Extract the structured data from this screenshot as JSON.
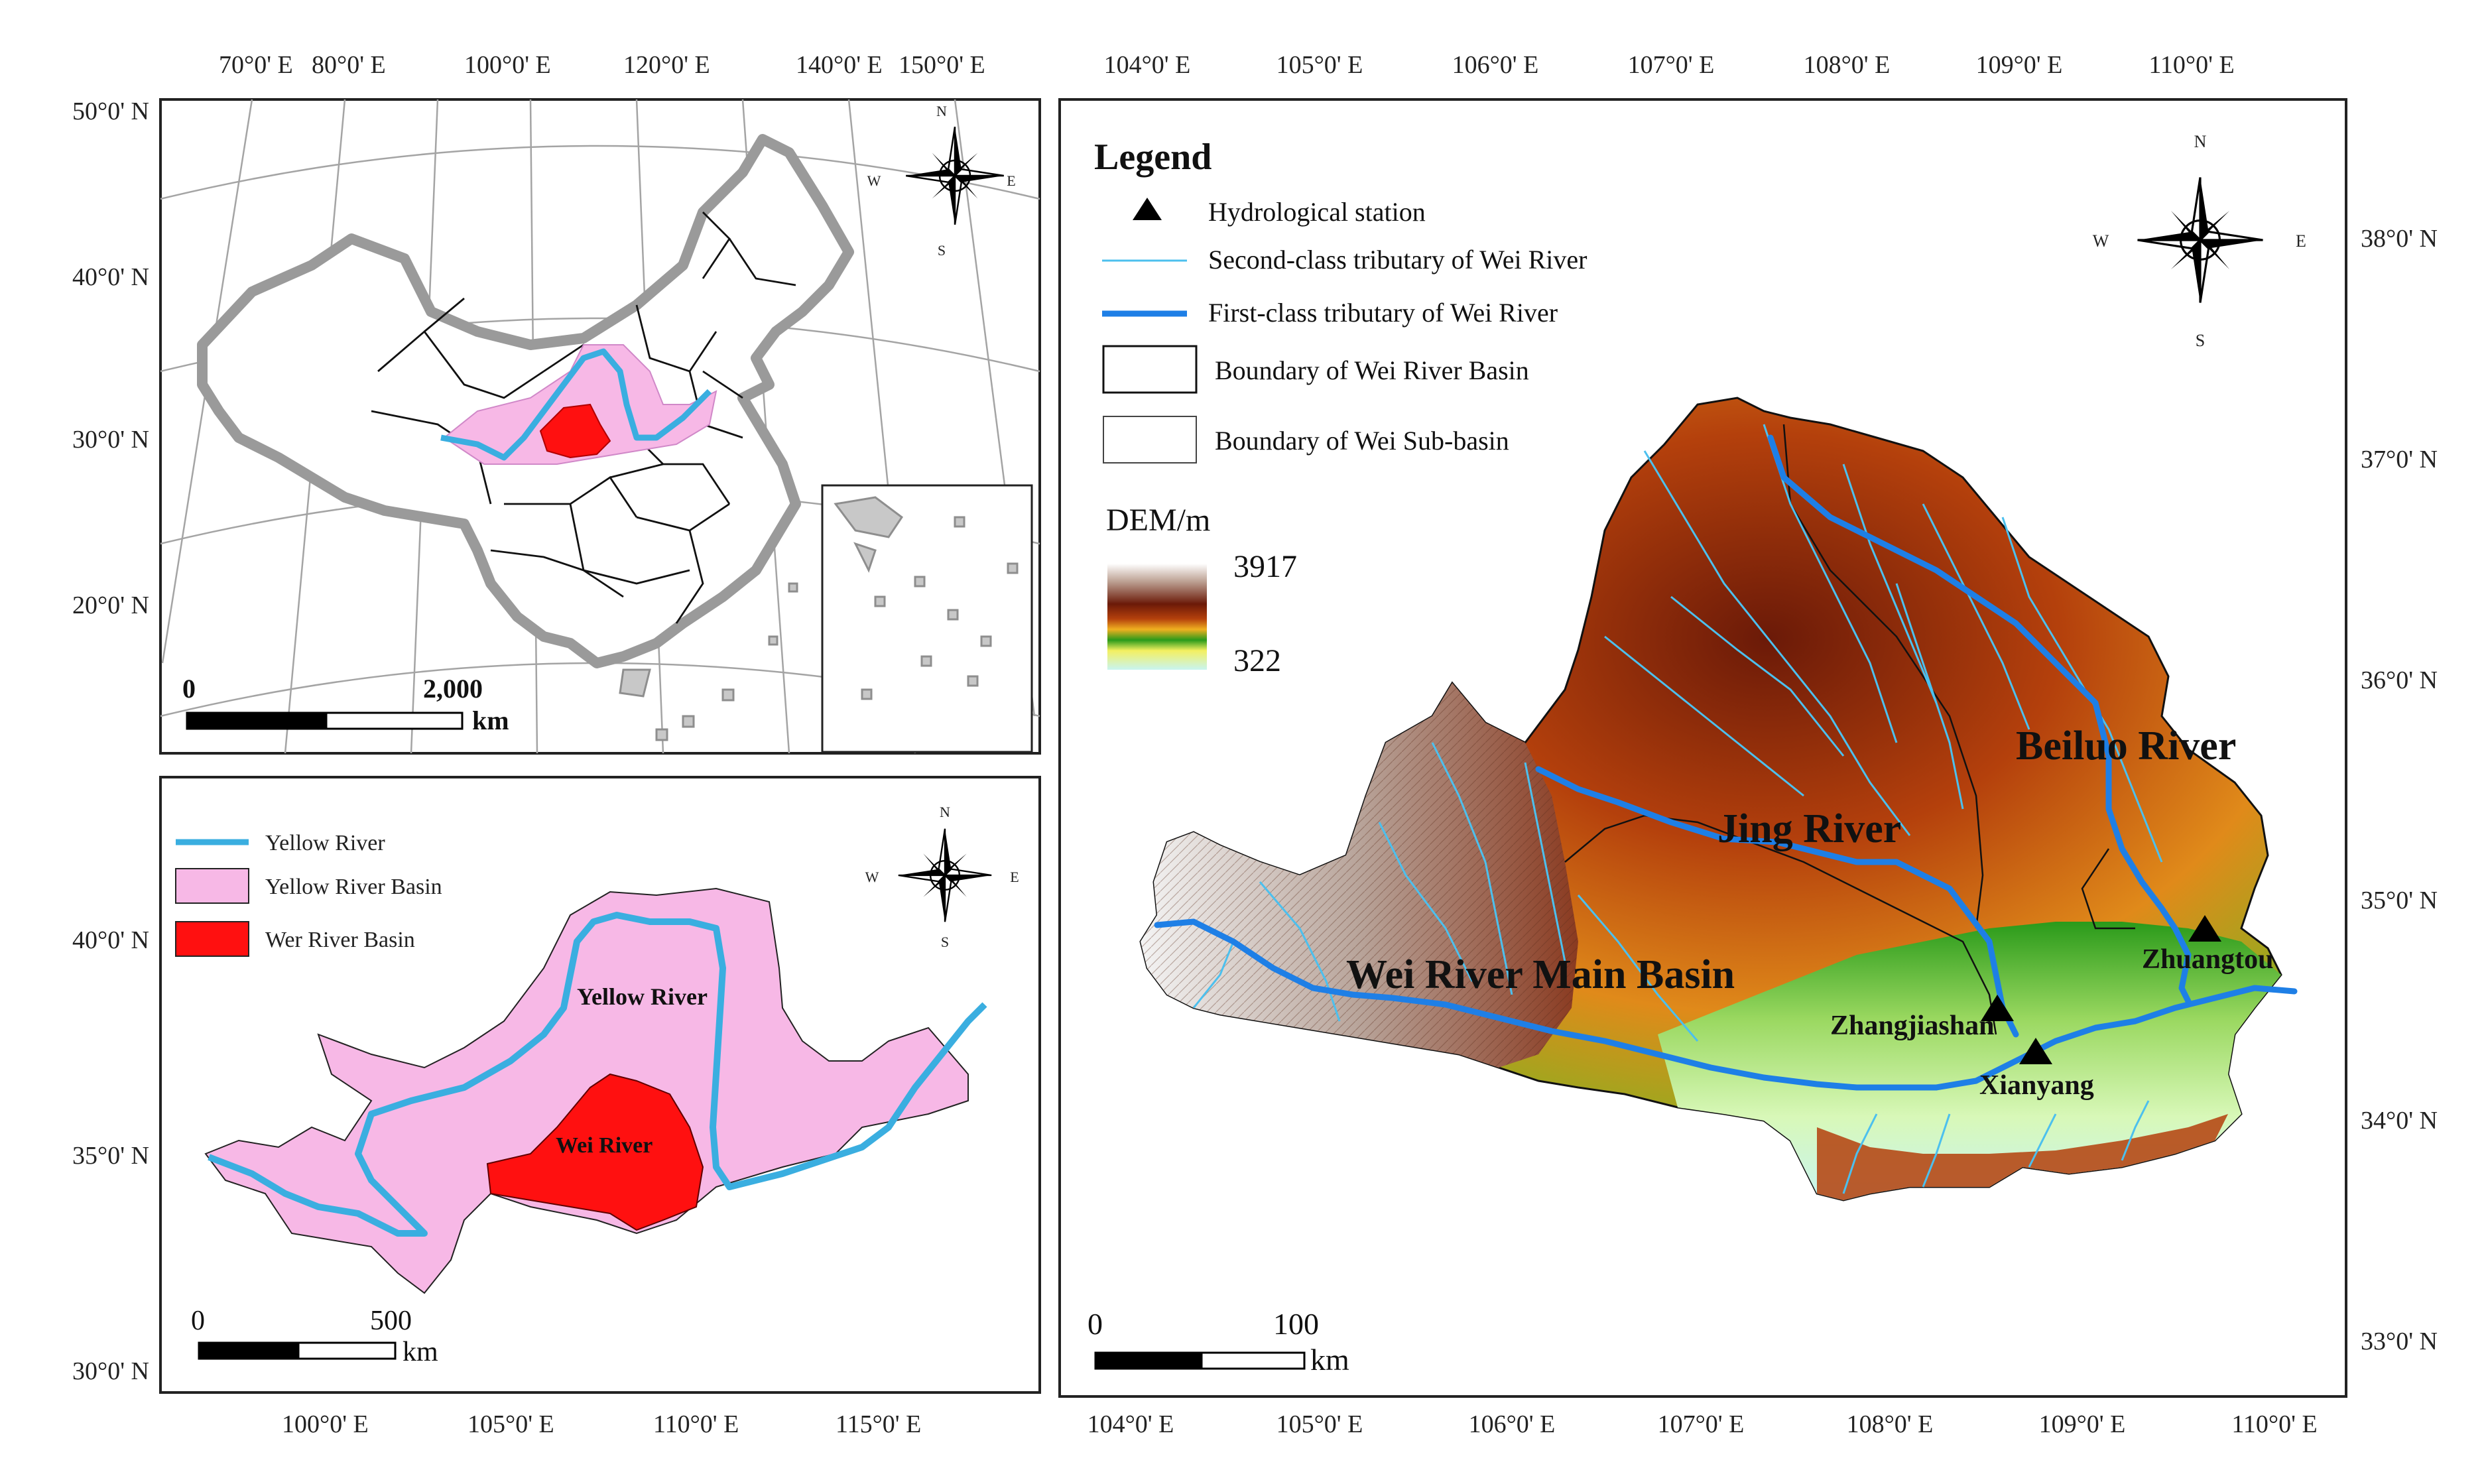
{
  "colors": {
    "frame": "#222222",
    "graticule": "#9a9a9a",
    "china_outline": "#8e8e8e",
    "province": "#111111",
    "yellow_river_basin": "#f7b8e6",
    "wei_river_basin": "#ff1010",
    "yellow_river": "#3aaee0",
    "first_class_tributary": "#1e7fe6",
    "second_class_tributary": "#4cc0ee",
    "dem_high": "#ffffff",
    "dem_brown": "#6b1a08",
    "dem_orange": "#e08a1a",
    "dem_green": "#2a9a1a",
    "dem_low": "#c8f4f0"
  },
  "panel_china": {
    "top_lon_labels": [
      "70°0' E",
      "80°0' E",
      "100°0' E",
      "120°0' E",
      "140°0' E",
      "150°0' E"
    ],
    "left_lat_labels": [
      "50°0' N",
      "40°0' N",
      "30°0' N",
      "20°0' N"
    ],
    "scale_min": "0",
    "scale_max": "2,000",
    "scale_unit": "km",
    "north_arrow": {
      "n": "N",
      "s": "S",
      "e": "E",
      "w": "W"
    }
  },
  "panel_yellow": {
    "bottom_lon_labels": [
      "100°0' E",
      "105°0' E",
      "110°0' E",
      "115°0' E"
    ],
    "left_lat_labels": [
      "40°0' N",
      "35°0' N",
      "30°0' N"
    ],
    "legend": [
      {
        "label": "Yellow River",
        "symbol": "line"
      },
      {
        "label": "Yellow River Basin",
        "symbol": "fill_pink"
      },
      {
        "label": "Wer River Basin",
        "symbol": "fill_red"
      }
    ],
    "labels": {
      "yellow_river": "Yellow River",
      "wei_river": "Wei River"
    },
    "scale_min": "0",
    "scale_max": "500",
    "scale_unit": "km",
    "north_arrow": {
      "n": "N",
      "s": "S",
      "e": "E",
      "w": "W"
    }
  },
  "panel_wei": {
    "top_lon_labels": [
      "104°0' E",
      "105°0' E",
      "106°0' E",
      "107°0' E",
      "108°0' E",
      "109°0' E",
      "110°0' E"
    ],
    "bottom_lon_labels": [
      "104°0' E",
      "105°0' E",
      "106°0' E",
      "107°0' E",
      "108°0' E",
      "109°0' E",
      "110°0' E"
    ],
    "right_lat_labels": [
      "38°0' N",
      "37°0' N",
      "36°0' N",
      "35°0' N",
      "34°0' N",
      "33°0' N"
    ],
    "legend": {
      "title": "Legend",
      "items": [
        {
          "label": "Hydrological station",
          "symbol": "triangle"
        },
        {
          "label": "Second-class tributary of Wei River",
          "symbol": "thin_line"
        },
        {
          "label": "First-class tributary of Wei River",
          "symbol": "thick_line"
        },
        {
          "label": "Boundary of Wei River Basin",
          "symbol": "box"
        },
        {
          "label": "Boundary of Wei Sub-basin",
          "symbol": "box"
        }
      ],
      "dem_title": "DEM/m",
      "dem_max": "3917",
      "dem_min": "322"
    },
    "basin_labels": {
      "jing": "Jing River",
      "beiluo": "Beiluo River",
      "wei_main": "Wei River Main Basin"
    },
    "stations": [
      {
        "name": "Zhuangtou"
      },
      {
        "name": "Zhangjiashan"
      },
      {
        "name": "Xianyang"
      }
    ],
    "scale_min": "0",
    "scale_max": "100",
    "scale_unit": "km",
    "north_arrow": {
      "n": "N",
      "s": "S",
      "e": "E",
      "w": "W"
    }
  }
}
